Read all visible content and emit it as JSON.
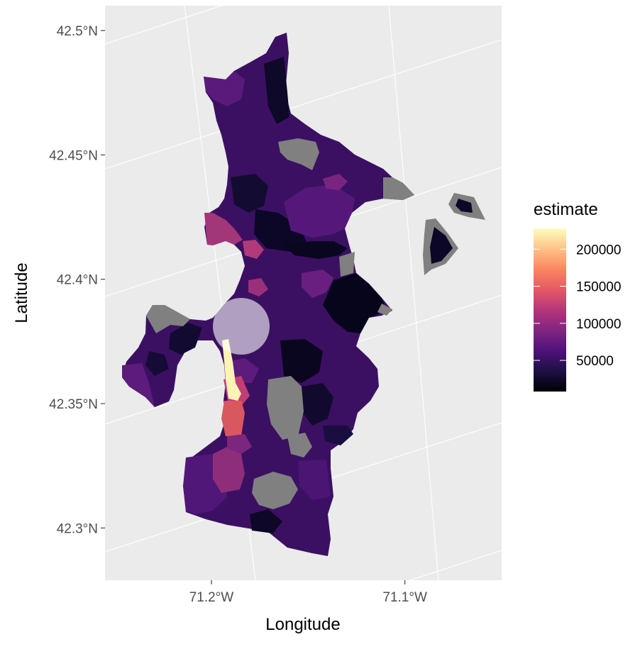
{
  "chart_data": {
    "type": "choropleth",
    "xlabel": "Longitude",
    "ylabel": "Latitude",
    "x_ticks": [
      "71.2°W",
      "71.1°W"
    ],
    "x_tick_values": [
      -71.2,
      -71.1
    ],
    "y_ticks": [
      "42.3°N",
      "42.35°N",
      "42.4°N",
      "42.45°N",
      "42.5°N"
    ],
    "y_tick_values": [
      42.3,
      42.35,
      42.4,
      42.45,
      42.5
    ],
    "xlim": [
      -71.255,
      -71.05
    ],
    "ylim": [
      42.279,
      42.51
    ],
    "fill_variable": "estimate",
    "na_fill": "#808080",
    "legend": {
      "title": "estimate",
      "position": "right",
      "range": [
        8000,
        228000
      ],
      "breaks": [
        200000,
        150000,
        100000,
        50000
      ],
      "labels": [
        "200000",
        "150000",
        "100000",
        "50000"
      ],
      "colormap": "magma",
      "colors": [
        "#000004",
        "#1c1044",
        "#4f127b",
        "#812581",
        "#b5367a",
        "#e55964",
        "#fb8761",
        "#fec287",
        "#fcfdbf"
      ]
    },
    "panel_background": "#ebebeb",
    "grid": true,
    "highlight": {
      "lon": -71.185,
      "lat": 42.376,
      "shape": "circle",
      "color": "#ffffff",
      "opacity": 0.6
    }
  }
}
